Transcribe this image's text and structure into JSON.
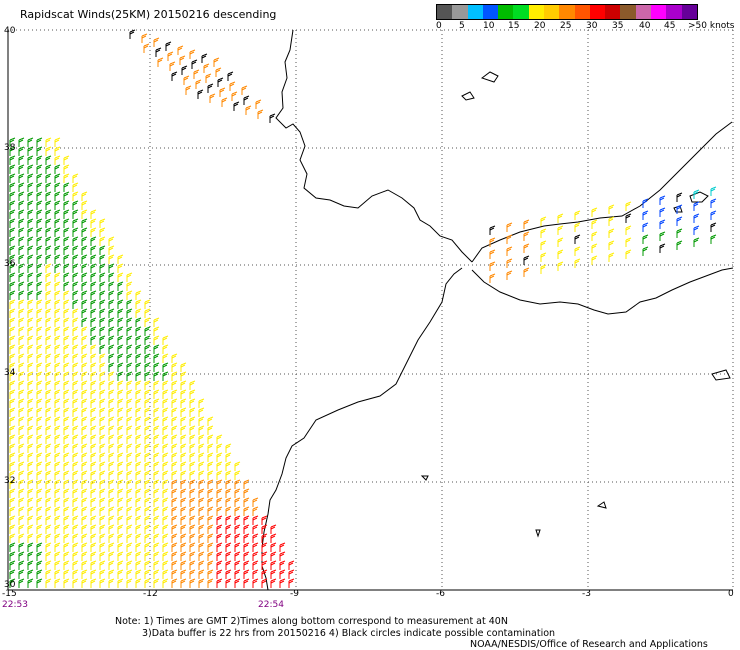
{
  "title": "Rapidscat Winds(25KM) 20150216 descending",
  "legend": {
    "colors": [
      "#555555",
      "#999999",
      "#00bfff",
      "#0055ff",
      "#00bb00",
      "#00dd22",
      "#ffee00",
      "#ffcc00",
      "#ff8800",
      "#ff5500",
      "#ff0000",
      "#cc0000",
      "#8b5a2b",
      "#cc66aa",
      "#ff00ff",
      "#aa00cc",
      "#660099"
    ],
    "ticks": [
      "0",
      "5",
      "10",
      "15",
      "20",
      "25",
      "30",
      "35",
      "40",
      "45",
      ">50 knots"
    ]
  },
  "axes": {
    "lat_labels": [
      "40",
      "38",
      "36",
      "34",
      "32",
      "30"
    ],
    "lon_labels": [
      "-15",
      "-12",
      "-9",
      "-6",
      "-3",
      "0"
    ]
  },
  "times": [
    "22:53",
    "22:54"
  ],
  "notes": [
    "Note: 1) Times are GMT 2)Times along bottom correspond to measurement at 40N",
    "3)Data buffer is 22 hrs from 20150216 4) Black circles indicate possible contamination"
  ],
  "credit": "NOAA/NESDIS/Office of Research and Applications",
  "colors": {
    "coast": "#000000",
    "grid": "#555555",
    "wind_green": "#009900",
    "wind_yellow": "#ffee00",
    "wind_orange": "#ff8800",
    "wind_red": "#ff0000",
    "wind_blue": "#0044ff",
    "wind_cyan": "#00cccc",
    "wind_black": "#000000"
  }
}
